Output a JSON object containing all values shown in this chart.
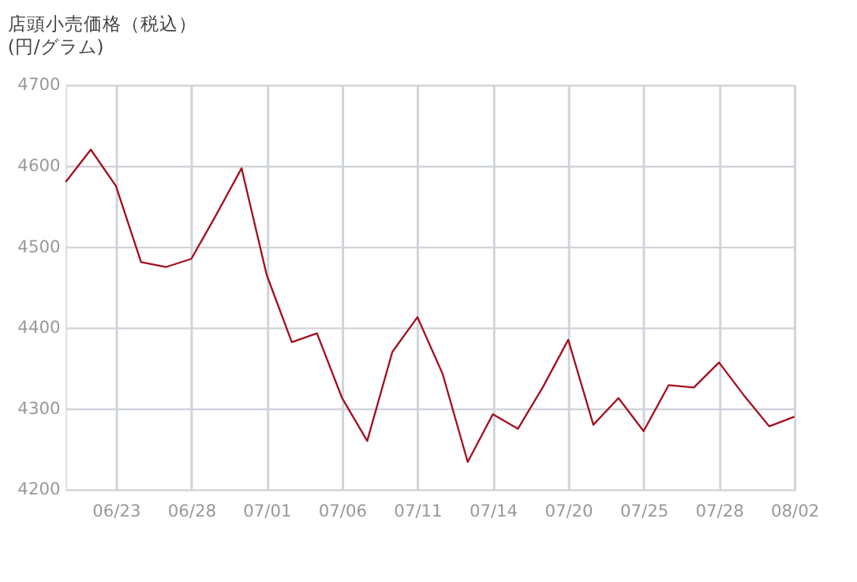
{
  "chart_data": {
    "type": "line",
    "title": "店頭小売価格（税込）",
    "subtitle": "(円/グラム)",
    "categories": [
      null,
      null,
      "06/23",
      null,
      null,
      "06/28",
      null,
      null,
      "07/01",
      null,
      null,
      "07/06",
      null,
      null,
      "07/11",
      null,
      null,
      "07/14",
      null,
      null,
      "07/20",
      null,
      null,
      "07/25",
      null,
      null,
      "07/28",
      null,
      null,
      "08/02"
    ],
    "series": [
      {
        "color": "#a3101e",
        "values": [
          4580,
          4620,
          4575,
          4481,
          4475,
          4485,
          4540,
          4597,
          4465,
          4382,
          4393,
          4313,
          4260,
          4370,
          4413,
          4343,
          4234,
          4293,
          4275,
          4327,
          4385,
          4280,
          4313,
          4272,
          4329,
          4326,
          4357,
          4316,
          4278,
          4290
        ]
      }
    ],
    "ylim": [
      4200,
      4700
    ],
    "yticks": [
      {
        "value": 4200,
        "label": "4200"
      },
      {
        "value": 4300,
        "label": "4300"
      },
      {
        "value": 4400,
        "label": "4400"
      },
      {
        "value": 4500,
        "label": "4500"
      },
      {
        "value": 4600,
        "label": "4600"
      },
      {
        "value": 4700,
        "label": "4700"
      }
    ],
    "grid": true,
    "marker": "none",
    "line_style": "solid",
    "legend": false
  }
}
